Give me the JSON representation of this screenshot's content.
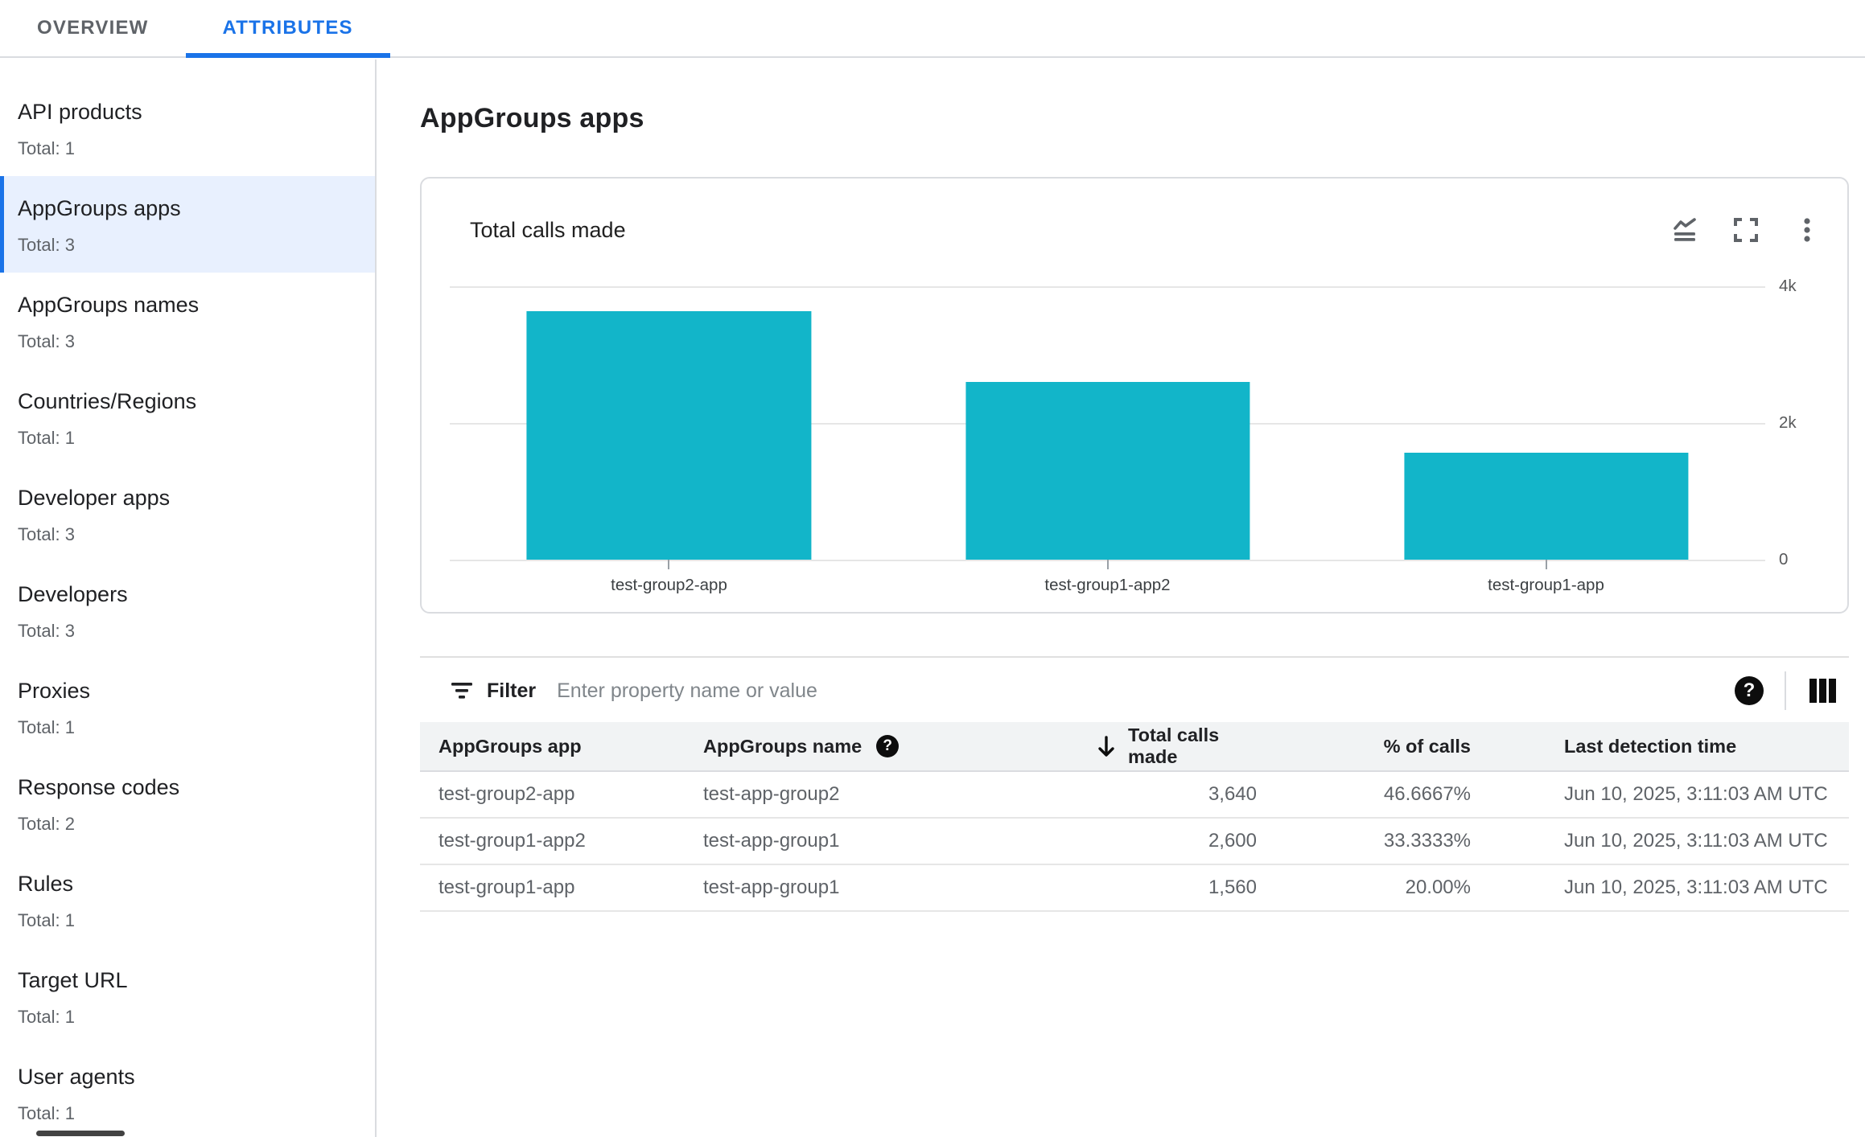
{
  "tabs": [
    {
      "label": "OVERVIEW",
      "active": false
    },
    {
      "label": "ATTRIBUTES",
      "active": true
    }
  ],
  "sidebar": {
    "items": [
      {
        "label": "API products",
        "total": "Total: 1",
        "selected": false
      },
      {
        "label": "AppGroups apps",
        "total": "Total: 3",
        "selected": true
      },
      {
        "label": "AppGroups names",
        "total": "Total: 3",
        "selected": false
      },
      {
        "label": "Countries/Regions",
        "total": "Total: 1",
        "selected": false
      },
      {
        "label": "Developer apps",
        "total": "Total: 3",
        "selected": false
      },
      {
        "label": "Developers",
        "total": "Total: 3",
        "selected": false
      },
      {
        "label": "Proxies",
        "total": "Total: 1",
        "selected": false
      },
      {
        "label": "Response codes",
        "total": "Total: 2",
        "selected": false
      },
      {
        "label": "Rules",
        "total": "Total: 1",
        "selected": false
      },
      {
        "label": "Target URL",
        "total": "Total: 1",
        "selected": false
      },
      {
        "label": "User agents",
        "total": "Total: 1",
        "selected": false
      }
    ]
  },
  "page": {
    "title": "AppGroups apps"
  },
  "chart_card": {
    "title": "Total calls made",
    "icons": [
      "area-chart-icon",
      "fullscreen-icon",
      "kebab-menu-icon"
    ]
  },
  "chart_data": {
    "type": "bar",
    "title": "Total calls made",
    "categories": [
      "test-group2-app",
      "test-group1-app2",
      "test-group1-app"
    ],
    "values": [
      3640,
      2600,
      1560
    ],
    "ylim": [
      0,
      4000
    ],
    "yticks": [
      {
        "value": 4000,
        "label": "4k"
      },
      {
        "value": 2000,
        "label": "2k"
      },
      {
        "value": 0,
        "label": "0"
      }
    ],
    "bar_color": "#12b5c9",
    "grid": true,
    "y_axis_side": "right",
    "legend": "none"
  },
  "filter": {
    "label": "Filter",
    "placeholder": "Enter property name or value",
    "icons": [
      "filter-list-icon",
      "help-icon",
      "view-column-icon"
    ]
  },
  "table": {
    "columns": [
      {
        "label": "AppGroups app"
      },
      {
        "label": "AppGroups name",
        "help_icon": true
      },
      {
        "label": "Total calls made",
        "sorted": "desc",
        "align": "right"
      },
      {
        "label": "% of calls",
        "align": "right"
      },
      {
        "label": "Last detection time"
      }
    ],
    "rows": [
      {
        "app": "test-group2-app",
        "name": "test-app-group2",
        "calls": "3,640",
        "pct": "46.6667%",
        "time": "Jun 10, 2025, 3:11:03 AM UTC"
      },
      {
        "app": "test-group1-app2",
        "name": "test-app-group1",
        "calls": "2,600",
        "pct": "33.3333%",
        "time": "Jun 10, 2025, 3:11:03 AM UTC"
      },
      {
        "app": "test-group1-app",
        "name": "test-app-group1",
        "calls": "1,560",
        "pct": "20.00%",
        "time": "Jun 10, 2025, 3:11:03 AM UTC"
      }
    ]
  },
  "colors": {
    "accent_blue": "#1a73e8",
    "selected_bg": "#e8f0fe",
    "bar_teal": "#12b5c9",
    "border": "#dadce0",
    "header_bg": "#f1f3f4",
    "text_primary": "#202124",
    "text_secondary": "#5f6368"
  }
}
